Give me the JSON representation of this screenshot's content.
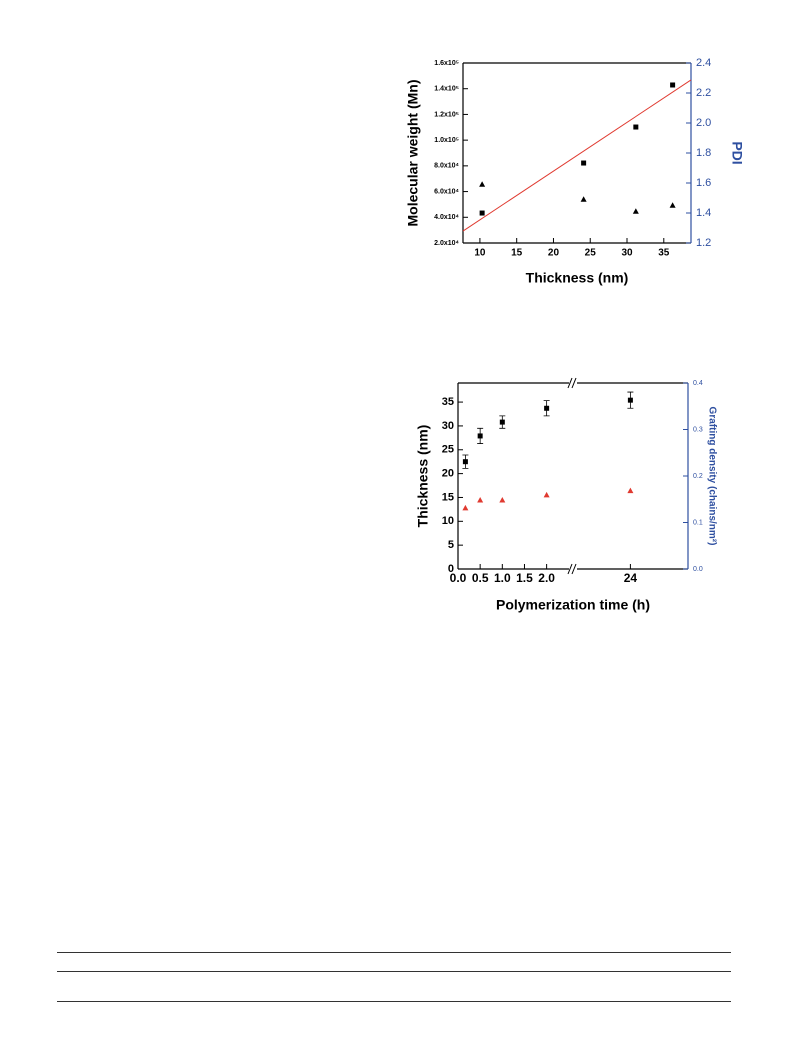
{
  "chart_data": [
    {
      "type": "scatter",
      "x_label": "Thickness (nm)",
      "y_label": "Molecular weight (Mn)",
      "y2_label": "PDI",
      "y2_color": "#2e4fa0",
      "xlim": [
        7.7,
        38.7
      ],
      "xticks": [
        10,
        15,
        20,
        25,
        30,
        35
      ],
      "ylim": [
        20000,
        160000
      ],
      "yticks": [
        {
          "value": 20000,
          "label": "2.0x10⁴"
        },
        {
          "value": 40000,
          "label": "4.0x10⁴"
        },
        {
          "value": 60000,
          "label": "6.0x10⁴"
        },
        {
          "value": 80000,
          "label": "8.0x10⁴"
        },
        {
          "value": 100000,
          "label": "1.0x10⁵"
        },
        {
          "value": 120000,
          "label": "1.2x10⁵"
        },
        {
          "value": 140000,
          "label": "1.4x10⁵"
        },
        {
          "value": 160000,
          "label": "1.6x10⁵"
        }
      ],
      "y2lim": [
        1.2,
        2.4
      ],
      "y2ticks": [
        1.2,
        1.4,
        1.6,
        1.8,
        {
          "value": 2,
          "label": "2.0"
        },
        2.2,
        2.4
      ],
      "x": [
        10.3,
        24.1,
        31.2,
        36.2
      ],
      "series": [
        {
          "color": "#000000",
          "marker": "square",
          "values": [
            43300,
            82200,
            110200,
            142900
          ]
        },
        {
          "color": "#000000",
          "marker": "triangle",
          "axis": "y2",
          "values": [
            1.59,
            1.49,
            1.41,
            1.45
          ]
        }
      ],
      "fit_line": {
        "color": "#e03a30",
        "x": [
          7.7,
          38.7
        ],
        "values": [
          29300,
          146800
        ]
      }
    },
    {
      "type": "scatter",
      "x_label": "Polymerization time (h)",
      "y_label": "Thickness (nm)",
      "y2_label": "Grafting density (chains/nm²)",
      "y2_color": "#2e4fa0",
      "xlim": [
        0,
        25.3
      ],
      "xbreak": [
        2.55,
        22.75
      ],
      "xticks": [
        {
          "value": 0,
          "label": "0.0"
        },
        0.5,
        {
          "value": 1,
          "label": "1.0"
        },
        1.5,
        {
          "value": 2,
          "label": "2.0"
        },
        24
      ],
      "ylim": [
        0,
        39
      ],
      "yticks": [
        0,
        5,
        10,
        15,
        20,
        25,
        30,
        35
      ],
      "y2lim": [
        0,
        0.4
      ],
      "y2ticks": [
        {
          "value": 0,
          "label": "0.0"
        },
        0.1,
        0.2,
        0.3,
        0.4
      ],
      "x": [
        0.167,
        0.5,
        1,
        2,
        24
      ],
      "series": [
        {
          "color": "#000000",
          "marker": "square",
          "values": [
            22.5,
            27.9,
            30.8,
            33.7,
            35.4
          ],
          "errors": [
            1.4,
            1.6,
            1.3,
            1.6,
            1.7
          ]
        },
        {
          "color": "#e03a30",
          "marker": "triangle",
          "axis": "y2",
          "values": [
            0.131,
            0.148,
            0.148,
            0.159,
            0.168
          ]
        }
      ]
    }
  ]
}
